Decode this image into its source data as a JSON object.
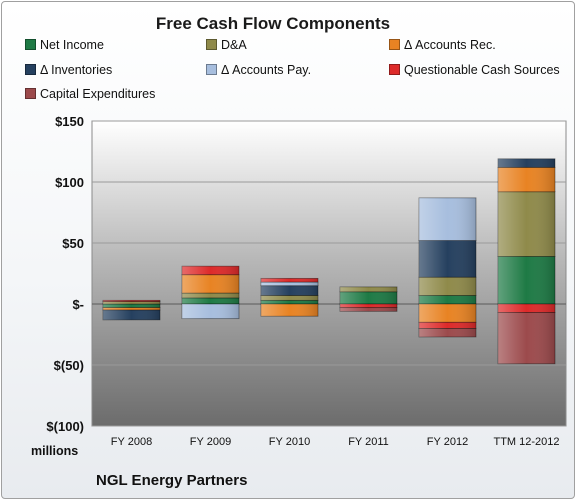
{
  "chart_data": {
    "type": "bar",
    "stacked": true,
    "title": "Free Cash Flow Components",
    "categories": [
      "FY 2008",
      "FY 2009",
      "FY 2010",
      "FY 2011",
      "FY 2012",
      "TTM 12-2012"
    ],
    "ylim": [
      -100,
      150
    ],
    "yticks": [
      -100,
      -50,
      0,
      50,
      100,
      150
    ],
    "ytick_labels": [
      "$(100)",
      "$(50)",
      "$-",
      "$50",
      "$100",
      "$150"
    ],
    "unit_label": "millions",
    "legend_position": "top",
    "series": [
      {
        "name": "Net Income",
        "color": "#1e7a45",
        "values": [
          -3,
          5,
          3,
          10,
          7,
          39
        ]
      },
      {
        "name": "D&A",
        "color": "#8f8a4a",
        "values": [
          2,
          4,
          4,
          4,
          15,
          53
        ]
      },
      {
        "name": "Δ Accounts Rec.",
        "color": "#e88323",
        "values": [
          -2,
          15,
          -10,
          0,
          -15,
          20
        ]
      },
      {
        "name": "Δ Inventories",
        "color": "#25405f",
        "values": [
          -8,
          0,
          8,
          0,
          30,
          7
        ]
      },
      {
        "name": "Δ Accounts Pay.",
        "color": "#a7bede",
        "values": [
          0,
          -12,
          3,
          0,
          35,
          0
        ]
      },
      {
        "name": "Questionable Cash Sources",
        "color": "#dd2a2a",
        "values": [
          1,
          7,
          3,
          -3,
          -5,
          -7
        ]
      },
      {
        "name": "Capital Expenditures",
        "color": "#9c4a4c",
        "values": [
          0,
          0,
          0,
          -3,
          -7,
          -42
        ]
      }
    ]
  },
  "footer": {
    "company": "NGL Energy Partners"
  }
}
